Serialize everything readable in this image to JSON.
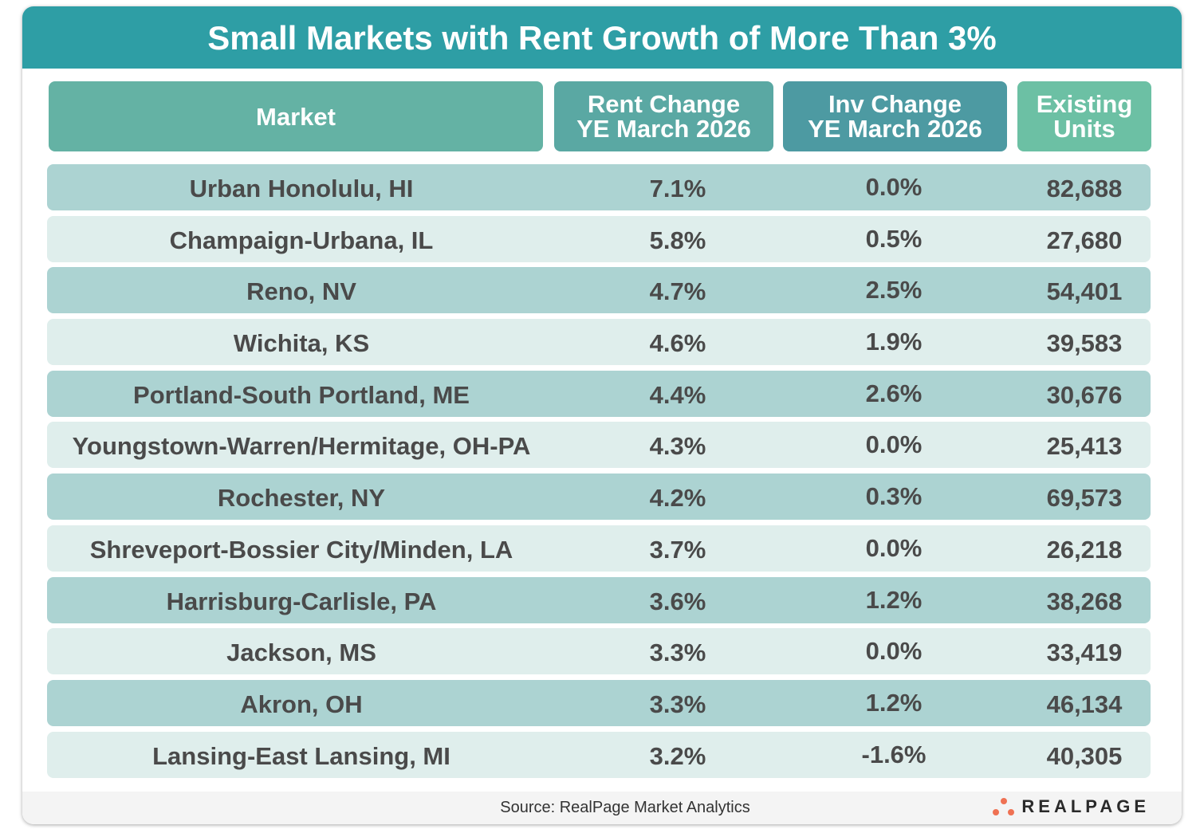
{
  "title": "Small Markets with Rent Growth of More Than 3%",
  "colors": {
    "title_bar": "#2e9ea5",
    "header_market": "#64b2a4",
    "header_rent": "#5aa8a3",
    "header_inv": "#4d9aa2",
    "header_units": "#6cc0a4",
    "row_dark": "#acd3d2",
    "row_light": "#dfeeec",
    "logo_dots": "#ef7153"
  },
  "chart_data": {
    "type": "table",
    "title": "Small Markets with Rent Growth of More Than 3%",
    "columns": [
      "Market",
      "Rent Change YE March 2026",
      "Inv Change YE March 2026",
      "Existing Units"
    ],
    "headers": {
      "market": "Market",
      "rent_l1": "Rent Change",
      "rent_l2": "YE March 2026",
      "inv_l1": "Inv Change",
      "inv_l2": "YE March 2026",
      "units_l1": "Existing",
      "units_l2": "Units"
    },
    "rows": [
      {
        "market": "Urban Honolulu, HI",
        "rent": "7.1%",
        "inv": "0.0%",
        "units": "82,688"
      },
      {
        "market": "Champaign-Urbana, IL",
        "rent": "5.8%",
        "inv": "0.5%",
        "units": "27,680"
      },
      {
        "market": "Reno, NV",
        "rent": "4.7%",
        "inv": "2.5%",
        "units": "54,401"
      },
      {
        "market": "Wichita, KS",
        "rent": "4.6%",
        "inv": "1.9%",
        "units": "39,583"
      },
      {
        "market": "Portland-South Portland, ME",
        "rent": "4.4%",
        "inv": "2.6%",
        "units": "30,676"
      },
      {
        "market": "Youngstown-Warren/Hermitage, OH-PA",
        "rent": "4.3%",
        "inv": "0.0%",
        "units": "25,413"
      },
      {
        "market": "Rochester, NY",
        "rent": "4.2%",
        "inv": "0.3%",
        "units": "69,573"
      },
      {
        "market": "Shreveport-Bossier City/Minden, LA",
        "rent": "3.7%",
        "inv": "0.0%",
        "units": "26,218"
      },
      {
        "market": "Harrisburg-Carlisle, PA",
        "rent": "3.6%",
        "inv": "1.2%",
        "units": "38,268"
      },
      {
        "market": "Jackson, MS",
        "rent": "3.3%",
        "inv": "0.0%",
        "units": "33,419"
      },
      {
        "market": "Akron, OH",
        "rent": "3.3%",
        "inv": "1.2%",
        "units": "46,134"
      },
      {
        "market": "Lansing-East Lansing, MI",
        "rent": "3.2%",
        "inv": "-1.6%",
        "units": "40,305"
      }
    ]
  },
  "footer": {
    "source": "Source: RealPage Market Analytics",
    "logo": "REALPAGE"
  }
}
